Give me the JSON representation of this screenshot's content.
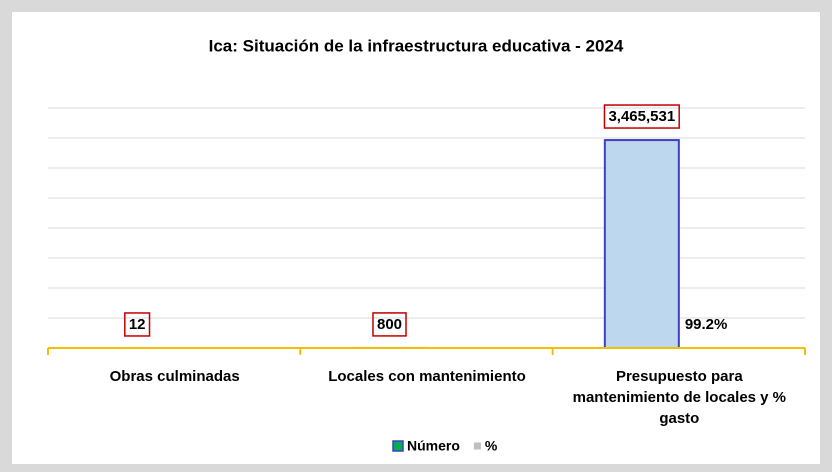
{
  "chart_data": {
    "type": "bar",
    "title": "Ica: Situación de la infraestructura educativa - 2024",
    "categories": [
      "Obras culminadas",
      "Locales con mantenimiento",
      "Presupuesto para mantenimiento de locales y % gasto"
    ],
    "series": [
      {
        "name": "Número",
        "color": "#bdd7ee",
        "values": [
          12,
          800,
          3465531
        ],
        "value_labels": [
          "12",
          "800",
          "3,465,531"
        ]
      },
      {
        "name": "%",
        "color": "#bfbfbf",
        "values": [
          null,
          null,
          99.2
        ],
        "value_labels": [
          null,
          null,
          "99.2%"
        ]
      }
    ],
    "ylim": [
      0,
      4000000
    ],
    "yticks": [
      0,
      500000,
      1000000,
      1500000,
      2000000,
      2500000,
      3000000,
      3500000,
      4000000
    ],
    "grid": true,
    "legend": "bottom"
  }
}
